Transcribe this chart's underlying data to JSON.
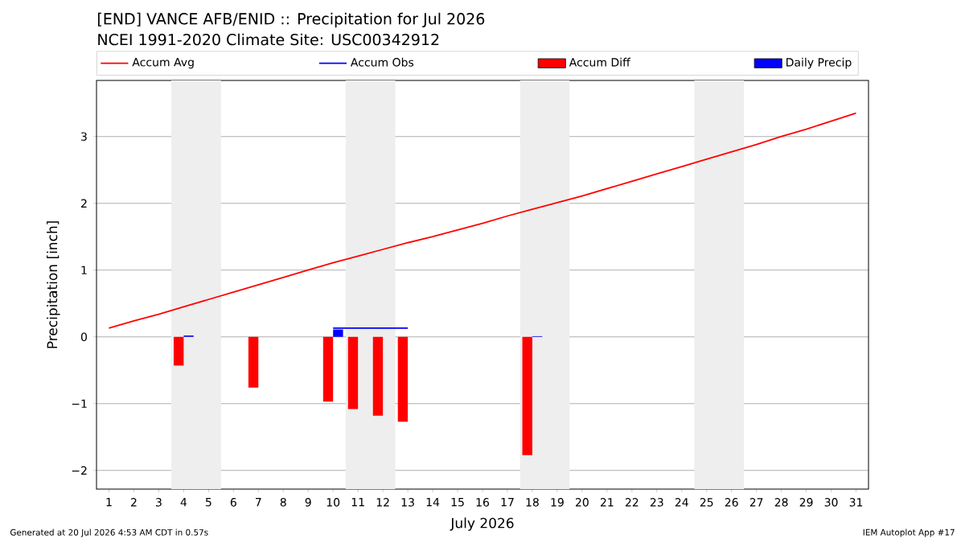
{
  "chart_data": {
    "type": "line",
    "title": "[END] VANCE AFB/ENID :: Precipitation for Jul 2026",
    "subtitle": "NCEI 1991-2020 Climate Site: USC00342912",
    "xlabel": "July 2026",
    "ylabel": "Precipitation [inch]",
    "annotations": [
      "Generated at 20 Jul 2026 4:53 AM CDT in 0.57s",
      "IEM Autoplot App #17"
    ],
    "xlim": [
      0.5,
      31.5
    ],
    "ylim": [
      -2.28,
      3.84
    ],
    "xticks": [
      1,
      2,
      3,
      4,
      5,
      6,
      7,
      8,
      9,
      10,
      11,
      12,
      13,
      14,
      15,
      16,
      17,
      18,
      19,
      20,
      21,
      22,
      23,
      24,
      25,
      26,
      27,
      28,
      29,
      30,
      31
    ],
    "yticks": [
      {
        "value": -2,
        "label": "−2"
      },
      {
        "value": -1,
        "label": "−1"
      },
      0,
      1,
      2,
      3
    ],
    "grid": "y",
    "legend": "top",
    "marker": "none",
    "line_style": "solid",
    "bands": [
      {
        "axis": "x",
        "from": 3.5,
        "to": 5.5,
        "color": "#eeeeee"
      },
      {
        "axis": "x",
        "from": 10.5,
        "to": 12.5,
        "color": "#eeeeee"
      },
      {
        "axis": "x",
        "from": 17.5,
        "to": 19.5,
        "color": "#eeeeee"
      },
      {
        "axis": "x",
        "from": 24.5,
        "to": 26.5,
        "color": "#eeeeee"
      }
    ],
    "series": [
      {
        "name": "Accum Avg",
        "color": "#ff0000",
        "x": [
          1,
          2,
          3,
          4,
          5,
          6,
          7,
          8,
          9,
          10,
          11,
          12,
          13,
          14,
          15,
          16,
          17,
          18,
          19,
          20,
          21,
          22,
          23,
          24,
          25,
          26,
          27,
          28,
          29,
          30,
          31
        ],
        "values": [
          0.13,
          0.24,
          0.34,
          0.45,
          0.56,
          0.67,
          0.78,
          0.89,
          1.0,
          1.11,
          1.21,
          1.31,
          1.41,
          1.5,
          1.6,
          1.7,
          1.81,
          1.91,
          2.01,
          2.11,
          2.22,
          2.33,
          2.44,
          2.55,
          2.66,
          2.77,
          2.88,
          3.0,
          3.11,
          3.23,
          3.35
        ]
      },
      {
        "name": "Accum Obs",
        "color": "#0000ff",
        "x": [
          10,
          11,
          12,
          13
        ],
        "values": [
          0.13,
          0.13,
          0.13,
          0.13
        ]
      },
      {
        "name": "Accum Diff",
        "type": "bar",
        "color": "#ff0000",
        "x": [
          4,
          7,
          10,
          11,
          12,
          13,
          18
        ],
        "values": [
          -0.43,
          -0.76,
          -0.97,
          -1.08,
          -1.18,
          -1.27,
          -1.77
        ]
      },
      {
        "name": "Daily Precip",
        "type": "bar",
        "color": "#0000ff",
        "x": [
          4,
          10,
          18
        ],
        "values": [
          0.02,
          0.11,
          0.01
        ]
      }
    ]
  }
}
